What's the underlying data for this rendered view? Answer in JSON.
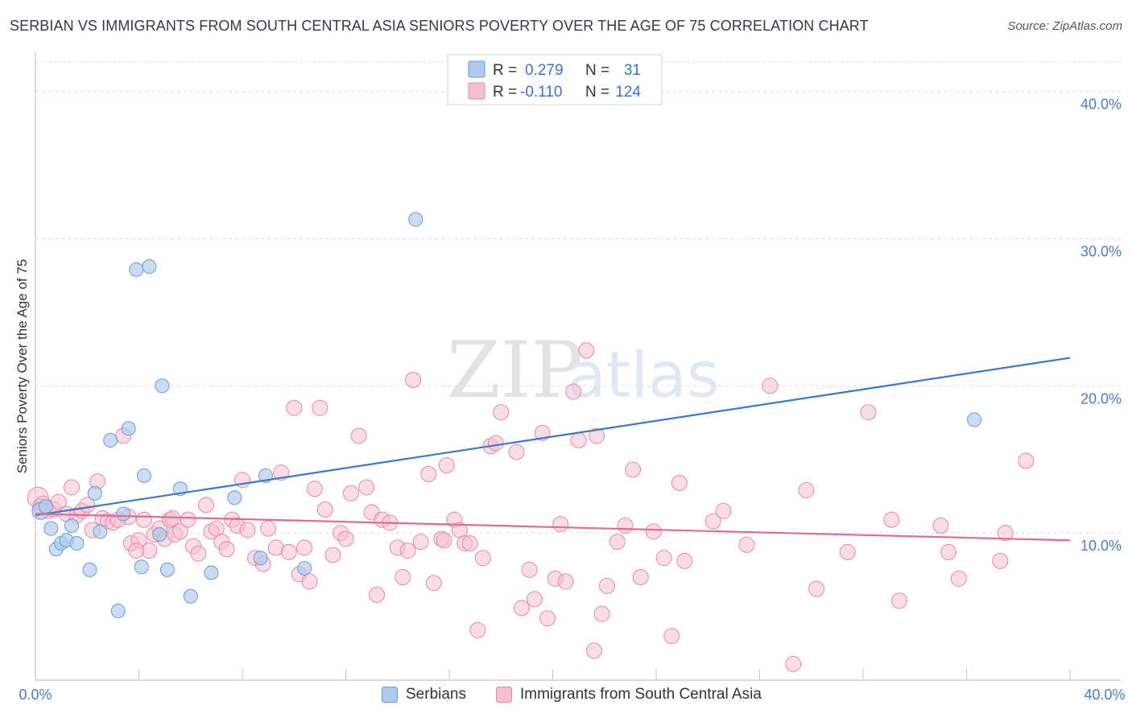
{
  "header": {
    "title": "SERBIAN VS IMMIGRANTS FROM SOUTH CENTRAL ASIA SENIORS POVERTY OVER THE AGE OF 75 CORRELATION CHART",
    "source": "Source: ZipAtlas.com"
  },
  "watermark": {
    "zip": "ZIP",
    "atlas": "atlas"
  },
  "colors": {
    "serbians_fill": "#aecbef",
    "serbians_stroke": "#6a9ad8",
    "serbians_line": "#3a78c9",
    "immigrants_fill": "#f6bfd0",
    "immigrants_stroke": "#e58aab",
    "immigrants_line": "#e06b96"
  },
  "legend": {
    "rows": [
      {
        "r_label": "R =",
        "r_value": "0.279",
        "n_label": "N =",
        "n_value": "31"
      },
      {
        "r_label": "R =",
        "r_value": "-0.110",
        "n_label": "N =",
        "n_value": "124"
      }
    ]
  },
  "bottom_legend": {
    "serbians": "Serbians",
    "immigrants": "Immigrants from South Central Asia"
  },
  "chart_data": {
    "type": "scatter",
    "title": "SERBIAN VS IMMIGRANTS FROM SOUTH CENTRAL ASIA SENIORS POVERTY OVER THE AGE OF 75 CORRELATION CHART",
    "xlabel": "",
    "ylabel": "Seniors Poverty Over the Age of 75",
    "xlim": [
      0,
      40
    ],
    "ylim": [
      0,
      42
    ],
    "x_tick_labels": [
      "0.0%",
      "40.0%"
    ],
    "y_tick_values": [
      10,
      20,
      30,
      40
    ],
    "y_tick_labels": [
      "10.0%",
      "20.0%",
      "30.0%",
      "40.0%"
    ],
    "grid": true,
    "legend_position": "top-center",
    "series": [
      {
        "name": "Serbians",
        "r": 0.279,
        "n": 31,
        "trend": {
          "x": [
            0,
            40
          ],
          "y": [
            11.2,
            21.9
          ]
        },
        "points": [
          [
            0.2,
            11.5
          ],
          [
            0.4,
            11.8
          ],
          [
            0.6,
            10.3
          ],
          [
            0.8,
            8.9
          ],
          [
            1.0,
            9.3
          ],
          [
            1.2,
            9.5
          ],
          [
            1.4,
            10.5
          ],
          [
            1.6,
            9.3
          ],
          [
            2.1,
            7.5
          ],
          [
            2.3,
            12.7
          ],
          [
            2.5,
            10.1
          ],
          [
            2.9,
            16.3
          ],
          [
            3.2,
            4.7
          ],
          [
            3.4,
            11.3
          ],
          [
            3.6,
            17.1
          ],
          [
            3.9,
            27.9
          ],
          [
            4.1,
            7.7
          ],
          [
            4.2,
            13.9
          ],
          [
            4.4,
            28.1
          ],
          [
            4.8,
            9.9
          ],
          [
            4.9,
            20.0
          ],
          [
            5.1,
            7.5
          ],
          [
            5.6,
            13.0
          ],
          [
            6.0,
            5.7
          ],
          [
            6.8,
            7.3
          ],
          [
            7.7,
            12.4
          ],
          [
            8.7,
            8.3
          ],
          [
            8.9,
            13.9
          ],
          [
            10.4,
            7.6
          ],
          [
            14.7,
            31.3
          ],
          [
            36.3,
            17.7
          ]
        ]
      },
      {
        "name": "Immigrants from South Central Asia",
        "r": -0.11,
        "n": 124,
        "trend": {
          "x": [
            0,
            40
          ],
          "y": [
            11.3,
            9.5
          ]
        },
        "points": [
          [
            0.1,
            12.4
          ],
          [
            0.2,
            11.8
          ],
          [
            0.3,
            12.0
          ],
          [
            0.5,
            11.5
          ],
          [
            0.7,
            11.6
          ],
          [
            0.9,
            12.1
          ],
          [
            1.2,
            11.3
          ],
          [
            1.4,
            13.1
          ],
          [
            1.6,
            11.2
          ],
          [
            1.8,
            11.5
          ],
          [
            2.0,
            11.9
          ],
          [
            2.2,
            10.2
          ],
          [
            2.4,
            13.5
          ],
          [
            2.6,
            11.0
          ],
          [
            2.8,
            10.8
          ],
          [
            3.0,
            10.7
          ],
          [
            3.2,
            10.9
          ],
          [
            3.4,
            16.6
          ],
          [
            3.6,
            11.1
          ],
          [
            3.7,
            9.3
          ],
          [
            4.0,
            9.5
          ],
          [
            4.2,
            10.9
          ],
          [
            4.4,
            8.8
          ],
          [
            4.6,
            9.9
          ],
          [
            4.8,
            10.3
          ],
          [
            5.0,
            9.6
          ],
          [
            5.2,
            10.9
          ],
          [
            5.4,
            9.9
          ],
          [
            5.6,
            10.1
          ],
          [
            5.9,
            10.9
          ],
          [
            6.1,
            9.1
          ],
          [
            6.3,
            8.6
          ],
          [
            6.6,
            11.9
          ],
          [
            6.8,
            10.1
          ],
          [
            7.0,
            10.3
          ],
          [
            7.2,
            9.4
          ],
          [
            7.4,
            8.9
          ],
          [
            7.6,
            10.9
          ],
          [
            7.8,
            10.5
          ],
          [
            8.0,
            13.6
          ],
          [
            8.2,
            10.2
          ],
          [
            8.5,
            8.3
          ],
          [
            8.8,
            7.9
          ],
          [
            9.0,
            10.3
          ],
          [
            9.3,
            9.0
          ],
          [
            9.5,
            14.1
          ],
          [
            9.8,
            8.7
          ],
          [
            10.0,
            18.5
          ],
          [
            10.2,
            7.2
          ],
          [
            10.4,
            9.0
          ],
          [
            10.6,
            6.7
          ],
          [
            10.8,
            13.0
          ],
          [
            11.0,
            18.5
          ],
          [
            11.2,
            11.6
          ],
          [
            11.5,
            8.5
          ],
          [
            11.8,
            10.0
          ],
          [
            12.0,
            9.6
          ],
          [
            12.2,
            12.7
          ],
          [
            12.5,
            16.6
          ],
          [
            12.8,
            13.1
          ],
          [
            13.0,
            11.4
          ],
          [
            13.2,
            5.8
          ],
          [
            13.4,
            10.9
          ],
          [
            13.7,
            10.7
          ],
          [
            14.0,
            9.0
          ],
          [
            14.2,
            7.0
          ],
          [
            14.4,
            8.8
          ],
          [
            14.6,
            20.4
          ],
          [
            14.9,
            9.4
          ],
          [
            15.2,
            14.0
          ],
          [
            15.4,
            6.6
          ],
          [
            15.7,
            9.6
          ],
          [
            15.9,
            14.6
          ],
          [
            16.2,
            10.9
          ],
          [
            16.4,
            10.2
          ],
          [
            16.6,
            9.3
          ],
          [
            16.8,
            9.3
          ],
          [
            17.1,
            3.4
          ],
          [
            17.3,
            8.3
          ],
          [
            17.6,
            15.9
          ],
          [
            17.8,
            16.1
          ],
          [
            18.0,
            18.2
          ],
          [
            18.6,
            15.5
          ],
          [
            18.8,
            4.9
          ],
          [
            19.1,
            7.5
          ],
          [
            19.3,
            5.5
          ],
          [
            19.6,
            16.8
          ],
          [
            19.8,
            4.2
          ],
          [
            20.1,
            6.9
          ],
          [
            20.3,
            10.6
          ],
          [
            20.5,
            6.7
          ],
          [
            20.8,
            19.6
          ],
          [
            21.0,
            16.3
          ],
          [
            21.3,
            22.4
          ],
          [
            21.6,
            2.0
          ],
          [
            21.7,
            16.6
          ],
          [
            21.9,
            4.5
          ],
          [
            22.1,
            6.4
          ],
          [
            22.5,
            9.4
          ],
          [
            22.8,
            10.5
          ],
          [
            23.1,
            14.3
          ],
          [
            23.4,
            7.0
          ],
          [
            23.9,
            10.1
          ],
          [
            24.3,
            8.3
          ],
          [
            24.6,
            3.0
          ],
          [
            24.9,
            13.4
          ],
          [
            25.1,
            8.1
          ],
          [
            26.2,
            10.8
          ],
          [
            27.5,
            9.2
          ],
          [
            28.4,
            20.0
          ],
          [
            29.3,
            1.1
          ],
          [
            29.8,
            12.9
          ],
          [
            30.2,
            6.2
          ],
          [
            31.4,
            8.7
          ],
          [
            32.2,
            18.2
          ],
          [
            33.1,
            10.9
          ],
          [
            33.4,
            5.4
          ],
          [
            35.0,
            10.5
          ],
          [
            35.3,
            8.7
          ],
          [
            35.7,
            6.9
          ],
          [
            37.3,
            8.1
          ],
          [
            37.5,
            10.0
          ],
          [
            38.3,
            14.9
          ],
          [
            3.9,
            8.8
          ],
          [
            5.3,
            11.0
          ],
          [
            15.8,
            9.5
          ],
          [
            26.6,
            11.5
          ]
        ]
      }
    ]
  }
}
